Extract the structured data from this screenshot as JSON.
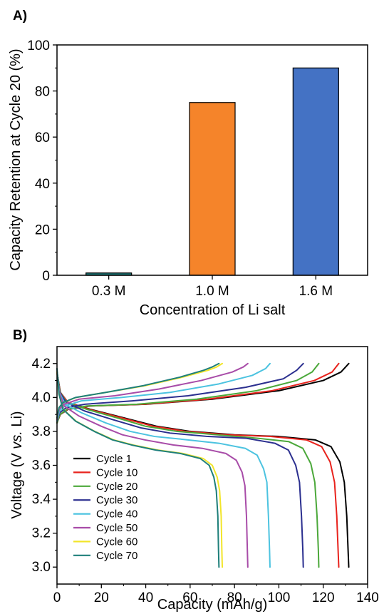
{
  "chart_data": [
    {
      "panel_label": "A)",
      "type": "bar",
      "categories": [
        "0.3 M",
        "1.0 M",
        "1.6 M"
      ],
      "values": [
        1,
        75,
        90
      ],
      "colors": [
        "#1f7f7f",
        "#f5842a",
        "#4472c4"
      ],
      "xlabel": "Concentration of Li salt",
      "ylabel": "Capacity Retention at Cycle 20 (%)",
      "ylim": [
        0,
        100
      ],
      "yticks": [
        0,
        20,
        40,
        60,
        80,
        100
      ],
      "grid": false
    },
    {
      "panel_label": "B)",
      "type": "line",
      "xlabel": "Capacity (mAh/g)",
      "ylabel_parts": [
        "Voltage (",
        "V ",
        "vs.",
        " Li",
        ")"
      ],
      "xlim": [
        0,
        140
      ],
      "ylim": [
        2.9,
        4.3
      ],
      "xticks": [
        0,
        20,
        40,
        60,
        80,
        100,
        120,
        140
      ],
      "yticks": [
        3.0,
        3.2,
        3.4,
        3.6,
        3.8,
        4.0,
        4.2
      ],
      "grid": false,
      "legend_position": "bottom-left",
      "series": [
        {
          "name": "Cycle 1",
          "color": "#000000",
          "capacity": 131.5,
          "discharge": [
            [
              0,
              4.15
            ],
            [
              1.5,
              4.03
            ],
            [
              5,
              3.97
            ],
            [
              15,
              3.93
            ],
            [
              30,
              3.88
            ],
            [
              45,
              3.83
            ],
            [
              60,
              3.8
            ],
            [
              80,
              3.78
            ],
            [
              100,
              3.77
            ],
            [
              116.4,
              3.75
            ],
            [
              123.5,
              3.71
            ],
            [
              127.5,
              3.62
            ],
            [
              129.5,
              3.5
            ],
            [
              130.6,
              3.3
            ],
            [
              131.2,
              3.1
            ],
            [
              131.5,
              3.0
            ]
          ],
          "charge": [
            [
              0,
              3.85
            ],
            [
              1.5,
              3.9
            ],
            [
              5,
              3.93
            ],
            [
              15,
              3.95
            ],
            [
              40,
              3.96
            ],
            [
              70,
              3.99
            ],
            [
              100,
              4.04
            ],
            [
              120,
              4.1
            ],
            [
              128,
              4.15
            ],
            [
              131.5,
              4.2
            ]
          ]
        },
        {
          "name": "Cycle 10",
          "color": "#e8231d",
          "capacity": 127.0,
          "discharge": [
            [
              0,
              4.15
            ],
            [
              1.4,
              4.03
            ],
            [
              5,
              3.97
            ],
            [
              14.5,
              3.93
            ],
            [
              29,
              3.88
            ],
            [
              43.5,
              3.83
            ],
            [
              58,
              3.8
            ],
            [
              77,
              3.78
            ],
            [
              96.5,
              3.77
            ],
            [
              112.4,
              3.75
            ],
            [
              119.3,
              3.71
            ],
            [
              123.1,
              3.62
            ],
            [
              125.1,
              3.5
            ],
            [
              126.1,
              3.3
            ],
            [
              126.7,
              3.1
            ],
            [
              127,
              3.0
            ]
          ],
          "charge": [
            [
              0,
              3.85
            ],
            [
              1.4,
              3.9
            ],
            [
              4.8,
              3.93
            ],
            [
              14.5,
              3.95
            ],
            [
              39,
              3.96
            ],
            [
              68,
              3.99
            ],
            [
              97,
              4.04
            ],
            [
              116,
              4.1
            ],
            [
              124,
              4.15
            ],
            [
              127,
              4.2
            ]
          ]
        },
        {
          "name": "Cycle 20",
          "color": "#4ba83a",
          "capacity": 118.0,
          "discharge": [
            [
              0,
              4.15
            ],
            [
              1.3,
              4.03
            ],
            [
              4.5,
              3.97
            ],
            [
              13.5,
              3.93
            ],
            [
              27,
              3.88
            ],
            [
              40,
              3.83
            ],
            [
              54,
              3.8
            ],
            [
              72,
              3.78
            ],
            [
              90,
              3.76
            ],
            [
              104.4,
              3.74
            ],
            [
              110.8,
              3.7
            ],
            [
              114.4,
              3.61
            ],
            [
              116.2,
              3.5
            ],
            [
              117.2,
              3.3
            ],
            [
              117.8,
              3.1
            ],
            [
              118,
              3.0
            ]
          ],
          "charge": [
            [
              0,
              3.85
            ],
            [
              1.3,
              3.9
            ],
            [
              4.5,
              3.93
            ],
            [
              13.5,
              3.95
            ],
            [
              36,
              3.96
            ],
            [
              63,
              3.99
            ],
            [
              90,
              4.04
            ],
            [
              108,
              4.1
            ],
            [
              115,
              4.15
            ],
            [
              118,
              4.2
            ]
          ]
        },
        {
          "name": "Cycle 30",
          "color": "#2b2f8f",
          "capacity": 111.0,
          "discharge": [
            [
              0,
              4.15
            ],
            [
              1.2,
              4.03
            ],
            [
              4.2,
              3.97
            ],
            [
              12.5,
              3.92
            ],
            [
              25,
              3.87
            ],
            [
              38,
              3.82
            ],
            [
              51,
              3.79
            ],
            [
              68,
              3.77
            ],
            [
              85,
              3.76
            ],
            [
              98.2,
              3.73
            ],
            [
              104.3,
              3.69
            ],
            [
              107.6,
              3.6
            ],
            [
              109.3,
              3.5
            ],
            [
              110.2,
              3.3
            ],
            [
              110.8,
              3.1
            ],
            [
              111,
              3.0
            ]
          ],
          "charge": [
            [
              0,
              3.86
            ],
            [
              1.2,
              3.91
            ],
            [
              4.2,
              3.94
            ],
            [
              12.5,
              3.96
            ],
            [
              34,
              3.98
            ],
            [
              59,
              4.01
            ],
            [
              85,
              4.06
            ],
            [
              102,
              4.11
            ],
            [
              108,
              4.16
            ],
            [
              111,
              4.2
            ]
          ]
        },
        {
          "name": "Cycle 40",
          "color": "#4cc3e0",
          "capacity": 96.0,
          "discharge": [
            [
              0,
              4.15
            ],
            [
              1.1,
              4.03
            ],
            [
              3.6,
              3.96
            ],
            [
              11,
              3.91
            ],
            [
              22,
              3.85
            ],
            [
              33,
              3.8
            ],
            [
              44,
              3.77
            ],
            [
              59,
              3.75
            ],
            [
              73,
              3.73
            ],
            [
              84.9,
              3.7
            ],
            [
              90.2,
              3.66
            ],
            [
              93.1,
              3.58
            ],
            [
              94.6,
              3.5
            ],
            [
              95.3,
              3.3
            ],
            [
              95.8,
              3.1
            ],
            [
              96,
              3.0
            ]
          ],
          "charge": [
            [
              0,
              3.86
            ],
            [
              1.1,
              3.92
            ],
            [
              3.6,
              3.95
            ],
            [
              11,
              3.98
            ],
            [
              29,
              4.0
            ],
            [
              51,
              4.03
            ],
            [
              73,
              4.08
            ],
            [
              88,
              4.13
            ],
            [
              94,
              4.17
            ],
            [
              96,
              4.2
            ]
          ]
        },
        {
          "name": "Cycle 50",
          "color": "#a84ca8",
          "capacity": 86.0,
          "discharge": [
            [
              0,
              4.15
            ],
            [
              1,
              4.03
            ],
            [
              3.2,
              3.95
            ],
            [
              10,
              3.89
            ],
            [
              20,
              3.83
            ],
            [
              29.5,
              3.78
            ],
            [
              39.5,
              3.75
            ],
            [
              52.5,
              3.72
            ],
            [
              65.5,
              3.7
            ],
            [
              76.1,
              3.67
            ],
            [
              80.8,
              3.63
            ],
            [
              83.4,
              3.56
            ],
            [
              84.7,
              3.48
            ],
            [
              85.4,
              3.3
            ],
            [
              85.8,
              3.1
            ],
            [
              86,
              3.0
            ]
          ],
          "charge": [
            [
              0,
              3.87
            ],
            [
              1,
              3.93
            ],
            [
              3.2,
              3.96
            ],
            [
              10,
              3.99
            ],
            [
              26,
              4.01
            ],
            [
              46,
              4.05
            ],
            [
              65,
              4.1
            ],
            [
              79,
              4.15
            ],
            [
              84,
              4.18
            ],
            [
              86,
              4.2
            ]
          ]
        },
        {
          "name": "Cycle 60",
          "color": "#f2e52a",
          "capacity": 74.5,
          "discharge": [
            [
              0,
              4.15
            ],
            [
              0.9,
              4.02
            ],
            [
              2.8,
              3.93
            ],
            [
              8.6,
              3.86
            ],
            [
              17,
              3.8
            ],
            [
              25.5,
              3.75
            ],
            [
              34.3,
              3.72
            ],
            [
              45.5,
              3.69
            ],
            [
              56.7,
              3.67
            ],
            [
              65.9,
              3.64
            ],
            [
              70,
              3.6
            ],
            [
              72.2,
              3.53
            ],
            [
              73.3,
              3.45
            ],
            [
              74,
              3.3
            ],
            [
              74.3,
              3.1
            ],
            [
              74.5,
              3.0
            ]
          ],
          "charge": [
            [
              0,
              3.88
            ],
            [
              0.9,
              3.94
            ],
            [
              2.8,
              3.97
            ],
            [
              8.6,
              4.0
            ],
            [
              22,
              4.03
            ],
            [
              40,
              4.07
            ],
            [
              56.7,
              4.12
            ],
            [
              68,
              4.16
            ],
            [
              72,
              4.18
            ],
            [
              74.5,
              4.2
            ]
          ]
        },
        {
          "name": "Cycle 70",
          "color": "#1e7f7a",
          "capacity": 73.0,
          "discharge": [
            [
              0,
              4.17
            ],
            [
              0.9,
              4.02
            ],
            [
              2.7,
              3.93
            ],
            [
              8.4,
              3.86
            ],
            [
              16.8,
              3.8
            ],
            [
              25,
              3.75
            ],
            [
              33.6,
              3.72
            ],
            [
              44.5,
              3.69
            ],
            [
              55.5,
              3.67
            ],
            [
              64.6,
              3.64
            ],
            [
              68.6,
              3.6
            ],
            [
              70.7,
              3.53
            ],
            [
              71.8,
              3.45
            ],
            [
              72.5,
              3.3
            ],
            [
              72.8,
              3.1
            ],
            [
              73,
              3.0
            ]
          ],
          "charge": [
            [
              0,
              3.88
            ],
            [
              0.9,
              3.94
            ],
            [
              2.7,
              3.97
            ],
            [
              8.4,
              4.0
            ],
            [
              22,
              4.03
            ],
            [
              39,
              4.07
            ],
            [
              55.5,
              4.12
            ],
            [
              66,
              4.16
            ],
            [
              70,
              4.18
            ],
            [
              73,
              4.2
            ]
          ]
        }
      ]
    }
  ]
}
